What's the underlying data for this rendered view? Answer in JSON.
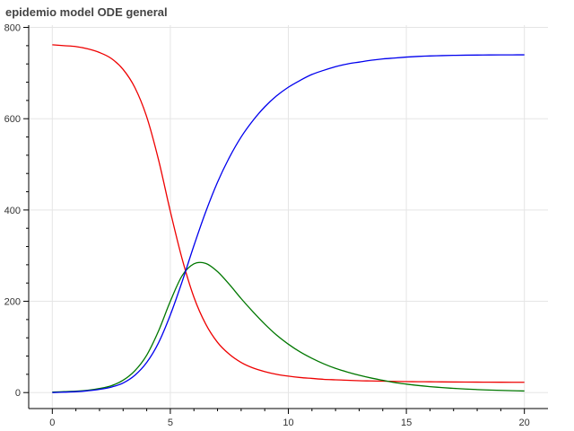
{
  "chart_data": {
    "type": "line",
    "title": "epidemio model ODE general",
    "xlabel": "",
    "ylabel": "",
    "xlim": [
      -1,
      21
    ],
    "ylim": [
      -35,
      805
    ],
    "grid": true,
    "x_ticks": [
      0,
      5,
      10,
      15,
      20
    ],
    "y_ticks": [
      0,
      200,
      400,
      600,
      800
    ],
    "x": [
      0,
      0.5,
      1,
      1.5,
      2,
      2.5,
      3,
      3.5,
      4,
      4.5,
      5,
      5.5,
      6,
      6.5,
      7,
      7.5,
      8,
      8.5,
      9,
      9.5,
      10,
      10.5,
      11,
      11.5,
      12,
      12.5,
      13,
      13.5,
      14,
      14.5,
      15,
      15.5,
      16,
      16.5,
      17,
      17.5,
      18,
      18.5,
      19,
      19.5,
      20
    ],
    "series": [
      {
        "color": "#ee0000",
        "values": [
          762,
          760,
          758,
          753,
          745,
          732,
          708,
          668,
          604,
          510,
          397,
          293,
          209,
          150,
          110,
          84,
          66,
          54,
          46,
          40,
          36,
          33,
          31,
          29,
          28,
          27,
          26,
          25.5,
          25,
          24.5,
          24,
          23.8,
          23.6,
          23.4,
          23.2,
          23,
          22.9,
          22.8,
          22.7,
          22.6,
          22.5
        ]
      },
      {
        "color": "#007700",
        "values": [
          1,
          2,
          3,
          5,
          9,
          15,
          27,
          48,
          82,
          135,
          200,
          256,
          282,
          283,
          265,
          237,
          206,
          177,
          150,
          126,
          106,
          89,
          75,
          63,
          53,
          45,
          38,
          32,
          27,
          22,
          18.5,
          15.5,
          13,
          11,
          9.2,
          7.8,
          6.6,
          5.6,
          4.8,
          4.1,
          3.5
        ]
      },
      {
        "color": "#0000ee",
        "values": [
          0,
          1,
          2,
          4,
          7,
          12,
          21,
          38,
          66,
          109,
          170,
          243,
          322,
          396,
          461,
          515,
          560,
          596,
          626,
          650,
          669,
          684,
          697,
          706,
          714,
          720,
          724,
          728,
          731,
          733,
          735,
          736.5,
          737.5,
          738.2,
          738.8,
          739.2,
          739.5,
          739.7,
          739.8,
          739.9,
          740
        ]
      }
    ]
  }
}
